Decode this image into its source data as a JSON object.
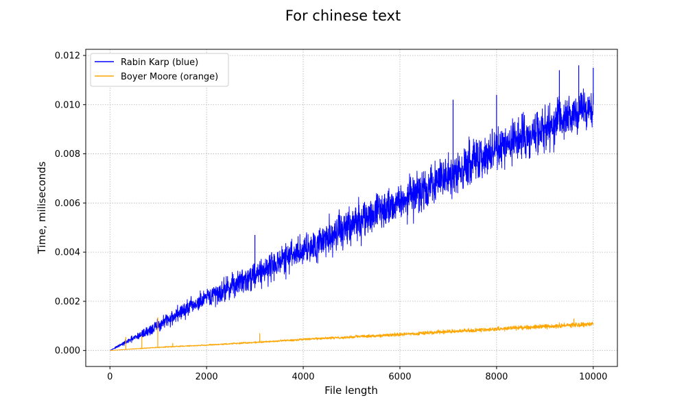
{
  "chart_data": {
    "type": "line",
    "title": "For chinese text",
    "xlabel": "File length",
    "ylabel": "Time, miliseconds",
    "xlim": [
      -500,
      10500
    ],
    "ylim": [
      -0.00065,
      0.01225
    ],
    "x_ticks": [
      0,
      2000,
      4000,
      6000,
      8000,
      10000
    ],
    "x_tick_labels": [
      "0",
      "2000",
      "4000",
      "6000",
      "8000",
      "10000"
    ],
    "y_ticks": [
      0.0,
      0.002,
      0.004,
      0.006,
      0.008,
      0.01,
      0.012
    ],
    "y_tick_labels": [
      "0.000",
      "0.002",
      "0.004",
      "0.006",
      "0.008",
      "0.010",
      "0.012"
    ],
    "grid": true,
    "legend_position": "top-left",
    "series": [
      {
        "name": "Rabin Karp (blue)",
        "color": "#0000ff",
        "x": [
          0,
          500,
          1000,
          1500,
          2000,
          2500,
          3000,
          3500,
          4000,
          4500,
          5000,
          5500,
          6000,
          6500,
          6700,
          6750,
          7000,
          7500,
          8000,
          8500,
          9000,
          9500,
          10000
        ],
        "y": [
          0.0,
          0.0005,
          0.001,
          0.0016,
          0.0021,
          0.0026,
          0.0031,
          0.0036,
          0.0041,
          0.0046,
          0.0051,
          0.0056,
          0.0061,
          0.0065,
          0.0067,
          0.0069,
          0.0071,
          0.0076,
          0.0081,
          0.0086,
          0.009,
          0.0095,
          0.01
        ],
        "spread": [
          0.0,
          0.0002,
          0.0004,
          0.0005,
          0.0006,
          0.0007,
          0.0008,
          0.0009,
          0.001,
          0.0011,
          0.0011,
          0.0012,
          0.0012,
          0.0013,
          0.0013,
          0.0013,
          0.0013,
          0.0013,
          0.0013,
          0.0013,
          0.0013,
          0.0013,
          0.0013
        ],
        "spikes": [
          [
            3000,
            0.0047
          ],
          [
            7100,
            0.0102
          ],
          [
            8000,
            0.0104
          ],
          [
            9300,
            0.0114
          ],
          [
            9700,
            0.0116
          ],
          [
            10000,
            0.0115
          ]
        ]
      },
      {
        "name": "Boyer Moore (orange)",
        "color": "#ffa500",
        "x": [
          0,
          1000,
          2000,
          3000,
          4000,
          5000,
          6000,
          7000,
          8000,
          9000,
          10000
        ],
        "y": [
          0.0,
          0.00013,
          0.00022,
          0.00033,
          0.00045,
          0.00055,
          0.00065,
          0.00077,
          0.00087,
          0.00097,
          0.00108
        ],
        "spread": [
          0.0,
          3e-05,
          4e-05,
          5e-05,
          7e-05,
          8e-05,
          0.0001,
          0.00011,
          0.00012,
          0.00014,
          0.00015
        ],
        "spikes": [
          [
            330,
            0.00055
          ],
          [
            660,
            0.00058
          ],
          [
            990,
            0.00135
          ],
          [
            1300,
            0.0003
          ],
          [
            3100,
            0.0007
          ],
          [
            9600,
            0.0013
          ]
        ]
      }
    ]
  }
}
